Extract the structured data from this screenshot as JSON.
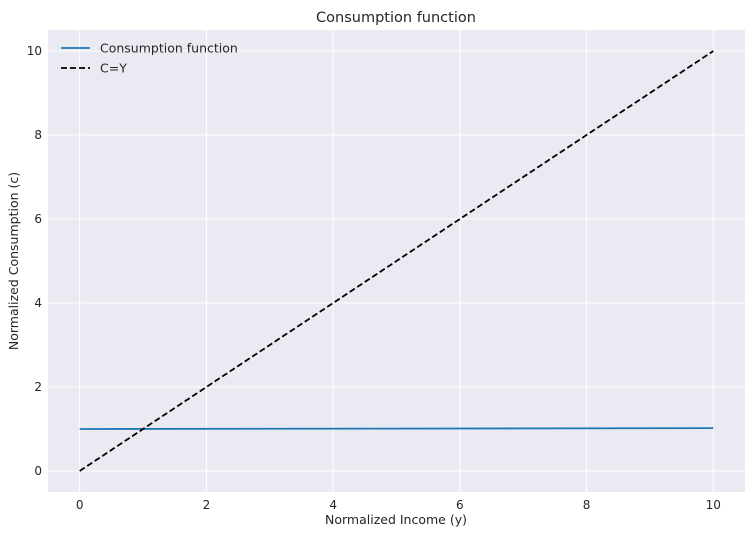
{
  "chart_data": {
    "type": "line",
    "title": "Consumption function",
    "xlabel": "Normalized Income (y)",
    "ylabel": "Normalized Consumption (c)",
    "xlim": [
      -0.5,
      10.5
    ],
    "ylim": [
      -0.5,
      10.5
    ],
    "xticks": [
      0,
      2,
      4,
      6,
      8,
      10
    ],
    "yticks": [
      0,
      2,
      4,
      6,
      8,
      10
    ],
    "grid": true,
    "legend_position": "top-left",
    "series": [
      {
        "name": "Consumption function",
        "color": "#1f77b4",
        "style": "solid",
        "x": [
          0,
          10
        ],
        "y": [
          1.0,
          1.02
        ]
      },
      {
        "name": "C=Y",
        "color": "#000000",
        "style": "dashed",
        "x": [
          0,
          10
        ],
        "y": [
          0,
          10
        ]
      }
    ]
  }
}
